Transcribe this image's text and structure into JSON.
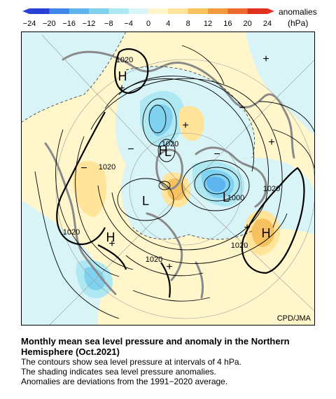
{
  "legend": {
    "ticks": [
      "−24",
      "−20",
      "−16",
      "−12",
      "−8",
      "−4",
      "0",
      "4",
      "8",
      "12",
      "16",
      "20",
      "24"
    ],
    "label_line1": "anomalies",
    "label_line2": "(hPa)",
    "colors": [
      "#2a3fd6",
      "#3f86e8",
      "#5db4ee",
      "#7fd2ef",
      "#aee8f2",
      "#d9f4f6",
      "#fff6cc",
      "#ffe49a",
      "#f8c15f",
      "#f39a3e",
      "#ec6a2c",
      "#e0301e"
    ]
  },
  "map": {
    "credit": "CPD/JMA",
    "pressure_labels": [
      "1020",
      "1020",
      "1020",
      "1020",
      "1020",
      "1020",
      "1020",
      "1000"
    ],
    "center_marks": [
      "H",
      "H",
      "H",
      "H",
      "L",
      "L",
      "L"
    ],
    "anomaly_signs": [
      "+",
      "+",
      "+",
      "+",
      "+",
      "+",
      "+",
      "−",
      "−",
      "−",
      "−"
    ]
  },
  "caption": {
    "title_line1": "Monthly mean sea level pressure and anomaly in the Northern",
    "title_line2": "Hemisphere (Oct.2021)",
    "line1": "The contours show sea level pressure at intervals of 4 hPa.",
    "line2": "The shading indicates sea level pressure anomalies.",
    "line3": "Anomalies are deviations from the 1991−2020 average."
  }
}
